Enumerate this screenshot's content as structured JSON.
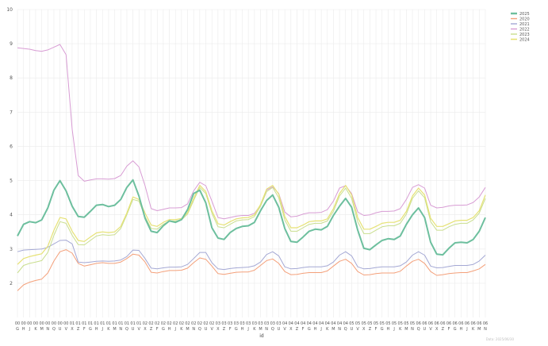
{
  "chart_data": {
    "type": "line",
    "title": "",
    "xlabel": "id",
    "ylabel": "",
    "ylim": [
      1,
      10
    ],
    "y_ticks": [
      2,
      3,
      4,
      5,
      6,
      7,
      8,
      9,
      10
    ],
    "grid": true,
    "legend_position": "top-right",
    "x_ticks_top": [
      "00",
      "00",
      "00",
      "00",
      "00",
      "00",
      "00",
      "00",
      "00",
      "01",
      "01",
      "01",
      "01",
      "01",
      "01",
      "01",
      "01",
      "01",
      "01",
      "01",
      "01",
      "02",
      "02",
      "02",
      "02",
      "02",
      "02",
      "02",
      "02",
      "02",
      "02",
      "02",
      "02",
      "03",
      "03",
      "03",
      "03",
      "03",
      "03",
      "03",
      "03",
      "03",
      "03",
      "03",
      "04",
      "04",
      "04",
      "04",
      "04",
      "04",
      "04",
      "04",
      "04",
      "04",
      "04",
      "05",
      "05",
      "05",
      "05",
      "05",
      "05",
      "05",
      "05",
      "05",
      "05",
      "05",
      "06",
      "06",
      "06",
      "06",
      "06",
      "06",
      "06",
      "06",
      "06",
      "06",
      "06",
      "06"
    ],
    "x_ticks_bottom": [
      "G",
      "H",
      "J",
      "K",
      "M",
      "N",
      "Q",
      "U",
      "V",
      "X",
      "Z",
      "F",
      "G",
      "H",
      "J",
      "K",
      "M",
      "N",
      "Q",
      "U",
      "V",
      "X",
      "Z",
      "F",
      "G",
      "H",
      "J",
      "K",
      "M",
      "N",
      "Q",
      "U",
      "V",
      "X",
      "Z",
      "F",
      "G",
      "H",
      "J",
      "K",
      "M",
      "N",
      "Q",
      "U",
      "V",
      "X",
      "Z",
      "F",
      "G",
      "H",
      "J",
      "K",
      "M",
      "N",
      "Q",
      "U",
      "V",
      "X",
      "Z",
      "F",
      "G",
      "H",
      "J",
      "K",
      "M",
      "N",
      "Q",
      "U",
      "V",
      "X",
      "Z",
      "F",
      "G",
      "H",
      "J",
      "K",
      "M",
      "N"
    ],
    "watermark": "Data: 2025/06/30",
    "series": [
      {
        "name": "2025",
        "color": "#6dbf9e",
        "width": 2.0,
        "values": [
          3.38,
          3.72,
          3.8,
          3.77,
          3.85,
          4.2,
          4.72,
          5.0,
          4.7,
          4.25,
          3.95,
          3.93,
          4.1,
          4.28,
          4.3,
          4.24,
          4.28,
          4.45,
          4.8,
          5.02,
          4.55,
          3.9,
          3.52,
          3.48,
          3.68,
          3.82,
          3.78,
          3.86,
          4.15,
          4.62,
          4.72,
          4.35,
          3.62,
          3.32,
          3.28,
          3.48,
          3.6,
          3.66,
          3.68,
          3.78,
          4.12,
          4.42,
          4.58,
          4.22,
          3.6,
          3.22,
          3.2,
          3.35,
          3.52,
          3.58,
          3.56,
          3.66,
          3.98,
          4.25,
          4.48,
          4.22,
          3.55,
          3.02,
          2.98,
          3.12,
          3.25,
          3.3,
          3.28,
          3.38,
          3.72,
          4.0,
          4.2,
          3.92,
          3.2,
          2.85,
          2.83,
          3.02,
          3.18,
          3.2,
          3.18,
          3.28,
          3.52,
          3.92
        ]
      },
      {
        "name": "2020",
        "color": "#f4a07a",
        "width": 1.0,
        "values": [
          1.78,
          1.95,
          2.03,
          2.08,
          2.12,
          2.3,
          2.65,
          2.92,
          2.98,
          2.88,
          2.58,
          2.5,
          2.54,
          2.58,
          2.6,
          2.58,
          2.58,
          2.62,
          2.72,
          2.85,
          2.82,
          2.62,
          2.32,
          2.3,
          2.34,
          2.37,
          2.37,
          2.38,
          2.44,
          2.6,
          2.74,
          2.7,
          2.5,
          2.28,
          2.26,
          2.29,
          2.32,
          2.33,
          2.33,
          2.38,
          2.52,
          2.66,
          2.71,
          2.58,
          2.34,
          2.25,
          2.26,
          2.29,
          2.31,
          2.31,
          2.31,
          2.36,
          2.5,
          2.64,
          2.7,
          2.58,
          2.34,
          2.24,
          2.25,
          2.28,
          2.3,
          2.3,
          2.3,
          2.35,
          2.5,
          2.64,
          2.7,
          2.58,
          2.34,
          2.23,
          2.25,
          2.28,
          2.3,
          2.31,
          2.31,
          2.36,
          2.42,
          2.55
        ]
      },
      {
        "name": "2021",
        "color": "#a4a8d4",
        "width": 1.0,
        "values": [
          2.92,
          2.97,
          2.98,
          2.99,
          3.0,
          3.05,
          3.15,
          3.25,
          3.26,
          3.15,
          2.62,
          2.6,
          2.62,
          2.64,
          2.65,
          2.64,
          2.65,
          2.68,
          2.78,
          2.97,
          2.96,
          2.72,
          2.44,
          2.42,
          2.45,
          2.47,
          2.47,
          2.48,
          2.55,
          2.72,
          2.9,
          2.9,
          2.6,
          2.42,
          2.4,
          2.43,
          2.45,
          2.46,
          2.47,
          2.51,
          2.62,
          2.84,
          2.92,
          2.8,
          2.48,
          2.42,
          2.43,
          2.46,
          2.48,
          2.48,
          2.48,
          2.51,
          2.62,
          2.82,
          2.92,
          2.8,
          2.48,
          2.42,
          2.43,
          2.46,
          2.48,
          2.48,
          2.48,
          2.51,
          2.62,
          2.82,
          2.92,
          2.82,
          2.5,
          2.45,
          2.46,
          2.49,
          2.52,
          2.52,
          2.52,
          2.55,
          2.65,
          2.82
        ]
      },
      {
        "name": "2022",
        "color": "#d89cd4",
        "width": 1.0,
        "values": [
          8.88,
          8.86,
          8.84,
          8.8,
          8.78,
          8.82,
          8.9,
          8.98,
          8.68,
          6.5,
          5.15,
          4.98,
          5.02,
          5.05,
          5.05,
          5.04,
          5.06,
          5.15,
          5.42,
          5.58,
          5.4,
          4.85,
          4.18,
          4.12,
          4.16,
          4.2,
          4.2,
          4.21,
          4.32,
          4.7,
          4.95,
          4.85,
          4.4,
          3.92,
          3.88,
          3.92,
          3.96,
          3.98,
          3.98,
          4.04,
          4.28,
          4.72,
          4.82,
          4.62,
          4.08,
          3.94,
          3.96,
          4.02,
          4.06,
          4.06,
          4.07,
          4.15,
          4.4,
          4.78,
          4.85,
          4.62,
          4.08,
          3.98,
          4.0,
          4.06,
          4.1,
          4.1,
          4.11,
          4.18,
          4.45,
          4.8,
          4.88,
          4.78,
          4.28,
          4.2,
          4.22,
          4.26,
          4.28,
          4.28,
          4.29,
          4.36,
          4.52,
          4.8
        ]
      },
      {
        "name": "2023",
        "color": "#c9de8e",
        "width": 1.0,
        "values": [
          2.3,
          2.52,
          2.58,
          2.62,
          2.66,
          2.9,
          3.4,
          3.8,
          3.75,
          3.4,
          3.13,
          3.12,
          3.25,
          3.38,
          3.42,
          3.4,
          3.42,
          3.6,
          4.0,
          4.45,
          4.4,
          3.95,
          3.6,
          3.58,
          3.72,
          3.82,
          3.82,
          3.85,
          4.02,
          4.42,
          4.8,
          4.62,
          4.05,
          3.65,
          3.62,
          3.72,
          3.82,
          3.85,
          3.86,
          3.95,
          4.25,
          4.68,
          4.8,
          4.5,
          3.85,
          3.52,
          3.52,
          3.62,
          3.72,
          3.75,
          3.75,
          3.82,
          4.1,
          4.55,
          4.78,
          4.48,
          3.8,
          3.45,
          3.45,
          3.55,
          3.65,
          3.68,
          3.68,
          3.75,
          4.02,
          4.48,
          4.7,
          4.5,
          3.8,
          3.55,
          3.55,
          3.65,
          3.72,
          3.75,
          3.75,
          3.85,
          4.05,
          4.48
        ]
      },
      {
        "name": "2024",
        "color": "#e6e275",
        "width": 1.2,
        "values": [
          2.55,
          2.72,
          2.78,
          2.82,
          2.86,
          3.08,
          3.55,
          3.92,
          3.88,
          3.52,
          3.25,
          3.22,
          3.35,
          3.47,
          3.5,
          3.48,
          3.5,
          3.66,
          4.05,
          4.52,
          4.45,
          4.05,
          3.7,
          3.66,
          3.78,
          3.86,
          3.86,
          3.89,
          4.06,
          4.48,
          4.86,
          4.68,
          4.12,
          3.74,
          3.7,
          3.8,
          3.88,
          3.91,
          3.92,
          4.0,
          4.3,
          4.75,
          4.86,
          4.6,
          3.95,
          3.62,
          3.62,
          3.7,
          3.8,
          3.82,
          3.82,
          3.88,
          4.18,
          4.62,
          4.86,
          4.58,
          3.92,
          3.58,
          3.58,
          3.66,
          3.75,
          3.78,
          3.78,
          3.84,
          4.1,
          4.55,
          4.78,
          4.58,
          3.9,
          3.66,
          3.66,
          3.74,
          3.82,
          3.84,
          3.84,
          3.92,
          4.12,
          4.58
        ]
      }
    ]
  }
}
